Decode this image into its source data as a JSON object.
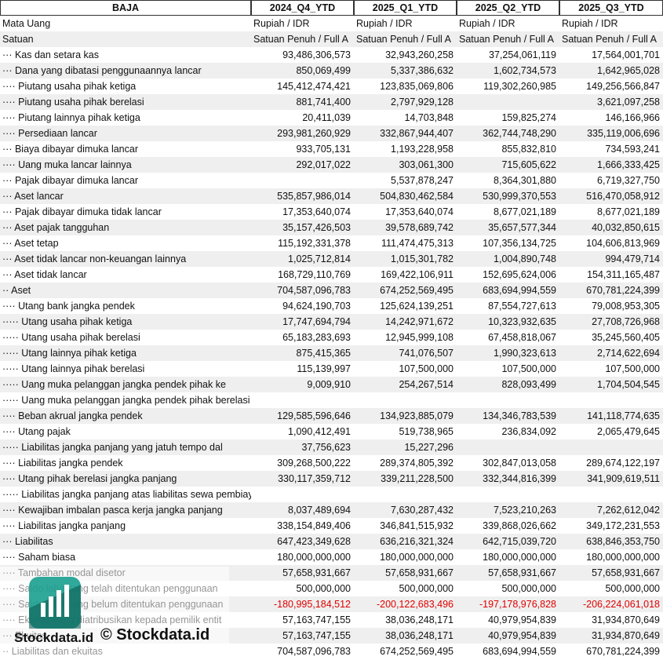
{
  "table": {
    "columns": [
      "BAJA",
      "2024_Q4_YTD",
      "2025_Q1_YTD",
      "2025_Q2_YTD",
      "2025_Q3_YTD"
    ],
    "rows": [
      [
        "Mata Uang",
        "Rupiah / IDR",
        "Rupiah / IDR",
        "Rupiah / IDR",
        "Rupiah / IDR"
      ],
      [
        "Satuan",
        "Satuan Penuh / Full A",
        "Satuan Penuh / Full A",
        "Satuan Penuh / Full A",
        "Satuan Penuh / Full A"
      ],
      [
        "··· Kas dan setara kas",
        "93,486,306,573",
        "32,943,260,258",
        "37,254,061,119",
        "17,564,001,701"
      ],
      [
        "··· Dana yang dibatasi penggunaannya lancar",
        "850,069,499",
        "5,337,386,632",
        "1,602,734,573",
        "1,642,965,028"
      ],
      [
        "···· Piutang usaha pihak ketiga",
        "145,412,474,421",
        "123,835,069,806",
        "119,302,260,985",
        "149,256,566,847"
      ],
      [
        "···· Piutang usaha pihak berelasi",
        "881,741,400",
        "2,797,929,128",
        null,
        "3,621,097,258"
      ],
      [
        "···· Piutang lainnya pihak ketiga",
        "20,411,039",
        "14,703,848",
        "159,825,274",
        "146,166,966"
      ],
      [
        "···· Persediaan lancar",
        "293,981,260,929",
        "332,867,944,407",
        "362,744,748,290",
        "335,119,006,696"
      ],
      [
        "··· Biaya dibayar dimuka lancar",
        "933,705,131",
        "1,193,228,958",
        "855,832,810",
        "734,593,241"
      ],
      [
        "···· Uang muka lancar lainnya",
        "292,017,022",
        "303,061,300",
        "715,605,622",
        "1,666,333,425"
      ],
      [
        "··· Pajak dibayar dimuka lancar",
        null,
        "5,537,878,247",
        "8,364,301,880",
        "6,719,327,750"
      ],
      [
        "··· Aset lancar",
        "535,857,986,014",
        "504,830,462,584",
        "530,999,370,553",
        "516,470,058,912"
      ],
      [
        "··· Pajak dibayar dimuka tidak lancar",
        "17,353,640,074",
        "17,353,640,074",
        "8,677,021,189",
        "8,677,021,189"
      ],
      [
        "··· Aset pajak tangguhan",
        "35,157,426,503",
        "39,578,689,742",
        "35,657,577,344",
        "40,032,850,615"
      ],
      [
        "··· Aset tetap",
        "115,192,331,378",
        "111,474,475,313",
        "107,356,134,725",
        "104,606,813,969"
      ],
      [
        "··· Aset tidak lancar non-keuangan lainnya",
        "1,025,712,814",
        "1,015,301,782",
        "1,004,890,748",
        "994,479,714"
      ],
      [
        "··· Aset tidak lancar",
        "168,729,110,769",
        "169,422,106,911",
        "152,695,624,006",
        "154,311,165,487"
      ],
      [
        "·· Aset",
        "704,587,096,783",
        "674,252,569,495",
        "683,694,994,559",
        "670,781,224,399"
      ],
      [
        "···· Utang bank jangka pendek",
        "94,624,190,703",
        "125,624,139,251",
        "87,554,727,613",
        "79,008,953,305"
      ],
      [
        "····· Utang usaha pihak ketiga",
        "17,747,694,794",
        "14,242,971,672",
        "10,323,932,635",
        "27,708,726,968"
      ],
      [
        "····· Utang usaha pihak berelasi",
        "65,183,283,693",
        "12,945,999,108",
        "67,458,818,067",
        "35,245,560,405"
      ],
      [
        "····· Utang lainnya pihak ketiga",
        "875,415,365",
        "741,076,507",
        "1,990,323,613",
        "2,714,622,694"
      ],
      [
        "····· Utang lainnya pihak berelasi",
        "115,139,997",
        "107,500,000",
        "107,500,000",
        "107,500,000"
      ],
      [
        "····· Uang muka pelanggan jangka pendek pihak ke",
        "9,009,910",
        "254,267,514",
        "828,093,499",
        "1,704,504,545"
      ],
      [
        "····· Uang muka pelanggan jangka pendek pihak berelasi",
        null,
        null,
        null,
        null
      ],
      [
        "···· Beban akrual jangka pendek",
        "129,585,596,646",
        "134,923,885,079",
        "134,346,783,539",
        "141,118,774,635"
      ],
      [
        "···· Utang pajak",
        "1,090,412,491",
        "519,738,965",
        "236,834,092",
        "2,065,479,645"
      ],
      [
        "····· Liabilitas jangka panjang yang jatuh tempo dal",
        "37,756,623",
        "15,227,296",
        null,
        null
      ],
      [
        "···· Liabilitas jangka pendek",
        "309,268,500,222",
        "289,374,805,392",
        "302,847,013,058",
        "289,674,122,197"
      ],
      [
        "···· Utang pihak berelasi jangka panjang",
        "330,117,359,712",
        "339,211,228,500",
        "332,344,816,399",
        "341,909,619,511"
      ],
      [
        "····· Liabilitas jangka panjang atas liabilitas sewa pembiayaan",
        null,
        null,
        null,
        null
      ],
      [
        "···· Kewajiban imbalan pasca kerja jangka panjang",
        "8,037,489,694",
        "7,630,287,432",
        "7,523,210,263",
        "7,262,612,042"
      ],
      [
        "···· Liabilitas jangka panjang",
        "338,154,849,406",
        "346,841,515,932",
        "339,868,026,662",
        "349,172,231,553"
      ],
      [
        "··· Liabilitas",
        "647,423,349,628",
        "636,216,321,324",
        "642,715,039,720",
        "638,846,353,750"
      ],
      [
        "···· Saham biasa",
        "180,000,000,000",
        "180,000,000,000",
        "180,000,000,000",
        "180,000,000,000"
      ],
      [
        "···· Tambahan modal disetor",
        "57,658,931,667",
        "57,658,931,667",
        "57,658,931,667",
        "57,658,931,667"
      ],
      [
        "···· Saldo laba yang telah ditentukan penggunaan",
        "500,000,000",
        "500,000,000",
        "500,000,000",
        "500,000,000"
      ],
      [
        "···· Saldo laba yang belum ditentukan penggunaan",
        "-180,995,184,512",
        "-200,122,683,496",
        "-197,178,976,828",
        "-206,224,061,018"
      ],
      [
        "···· Ekuitas yang diatribusikan kepada pemilik entit",
        "57,163,747,155",
        "38,036,248,171",
        "40,979,954,839",
        "31,934,870,649"
      ],
      [
        "··· Ekuitas",
        "57,163,747,155",
        "38,036,248,171",
        "40,979,954,839",
        "31,934,870,649"
      ],
      [
        "·· Liabilitas dan ekuitas",
        "704,587,096,783",
        "674,252,569,495",
        "683,694,994,559",
        "670,781,224,399"
      ]
    ]
  },
  "watermark": {
    "copyright": "© Stockdata.id",
    "brand": "Stockdata.id"
  }
}
